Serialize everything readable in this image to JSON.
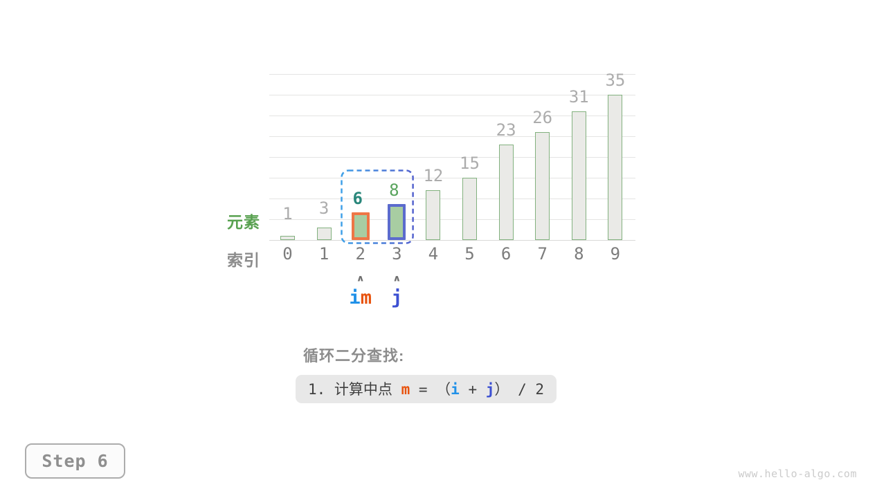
{
  "chart_data": {
    "type": "bar",
    "title": "",
    "xlabel": "索引",
    "ylabel": "元素",
    "categories": [
      "0",
      "1",
      "2",
      "3",
      "4",
      "5",
      "6",
      "7",
      "8",
      "9"
    ],
    "values": [
      1,
      3,
      6,
      8,
      12,
      15,
      23,
      26,
      31,
      35
    ],
    "ylim": [
      0,
      40
    ],
    "grid": true,
    "gridline_step": 5,
    "bars": [
      {
        "index": 0,
        "category": "0",
        "value": 1,
        "role": "normal"
      },
      {
        "index": 1,
        "category": "1",
        "value": 3,
        "role": "normal"
      },
      {
        "index": 2,
        "category": "2",
        "value": 6,
        "role": "mid",
        "value_label_style": "teal"
      },
      {
        "index": 3,
        "category": "3",
        "value": 8,
        "role": "right",
        "value_label_style": "green"
      },
      {
        "index": 4,
        "category": "4",
        "value": 12,
        "role": "normal"
      },
      {
        "index": 5,
        "category": "5",
        "value": 15,
        "role": "normal"
      },
      {
        "index": 6,
        "category": "6",
        "value": 23,
        "role": "normal"
      },
      {
        "index": 7,
        "category": "7",
        "value": 26,
        "role": "normal"
      },
      {
        "index": 8,
        "category": "8",
        "value": 31,
        "role": "normal"
      },
      {
        "index": 9,
        "category": "9",
        "value": 35,
        "role": "normal"
      }
    ],
    "highlight_range": {
      "from_index": 2,
      "to_index": 3
    }
  },
  "pointers": {
    "arrow_glyph": "∧",
    "items": [
      {
        "at_index": 2,
        "parts": [
          {
            "text": "i",
            "color": "blue"
          },
          {
            "text": "m",
            "color": "orange"
          }
        ]
      },
      {
        "at_index": 3,
        "parts": [
          {
            "text": "j",
            "color": "indigo"
          }
        ]
      }
    ]
  },
  "caption": {
    "heading": "循环二分查找:",
    "formula_parts": [
      {
        "text": "1. 计算中点 ",
        "color": "ink",
        "bold": false
      },
      {
        "text": "m",
        "color": "orange",
        "bold": true
      },
      {
        "text": " = ",
        "color": "ink",
        "bold": false
      },
      {
        "text": "（",
        "color": "ink",
        "bold": false
      },
      {
        "text": "i",
        "color": "blue",
        "bold": true
      },
      {
        "text": " + ",
        "color": "ink",
        "bold": false
      },
      {
        "text": "j",
        "color": "indigo",
        "bold": true
      },
      {
        "text": "） / 2",
        "color": "ink",
        "bold": false
      }
    ]
  },
  "footer": {
    "step_label": "Step 6",
    "watermark": "www.hello-algo.com"
  },
  "colors": {
    "orange": "#E8530E",
    "blue": "#2191E8",
    "indigo": "#3C50D2",
    "teal": "#2A877B",
    "green": "#58A35C",
    "ink": "#3F3F3F",
    "bar_fill": "#EAEAE7",
    "bar_stroke": "#82B17E",
    "highlight_fill": "#A8CDA2",
    "mid_border": "#EE7646",
    "right_border": "#5B6BCD",
    "range_dash_start": "#3FA0E8",
    "range_dash_end": "#5463CE",
    "value_label_gray": "#ACACAC",
    "index_label_gray": "#7C7C7C",
    "element_label_green": "#58A150",
    "muted_heading_gray": "#8C8C8C"
  }
}
